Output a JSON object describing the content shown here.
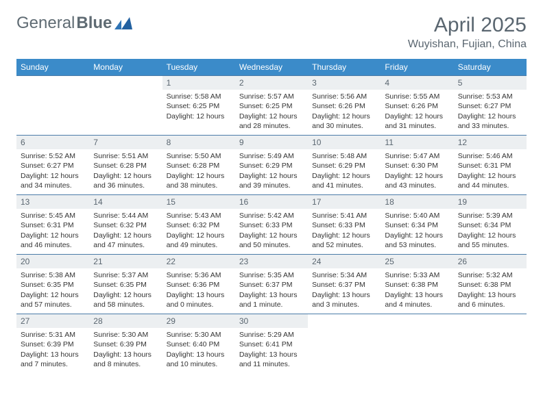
{
  "logo": {
    "text1": "General",
    "text2": "Blue"
  },
  "title": "April 2025",
  "location": "Wuyishan, Fujian, China",
  "colors": {
    "header_bg": "#3b8bc9",
    "header_text": "#ffffff",
    "daynum_bg": "#eceff1",
    "border": "#4a7ba8",
    "title_color": "#5a6670",
    "logo_accent": "#2f74b5"
  },
  "weekdays": [
    "Sunday",
    "Monday",
    "Tuesday",
    "Wednesday",
    "Thursday",
    "Friday",
    "Saturday"
  ],
  "weeks": [
    [
      {
        "day": null
      },
      {
        "day": null
      },
      {
        "day": 1,
        "sunrise": "5:58 AM",
        "sunset": "6:25 PM",
        "daylight": "12 hours"
      },
      {
        "day": 2,
        "sunrise": "5:57 AM",
        "sunset": "6:25 PM",
        "daylight": "12 hours and 28 minutes."
      },
      {
        "day": 3,
        "sunrise": "5:56 AM",
        "sunset": "6:26 PM",
        "daylight": "12 hours and 30 minutes."
      },
      {
        "day": 4,
        "sunrise": "5:55 AM",
        "sunset": "6:26 PM",
        "daylight": "12 hours and 31 minutes."
      },
      {
        "day": 5,
        "sunrise": "5:53 AM",
        "sunset": "6:27 PM",
        "daylight": "12 hours and 33 minutes."
      }
    ],
    [
      {
        "day": 6,
        "sunrise": "5:52 AM",
        "sunset": "6:27 PM",
        "daylight": "12 hours and 34 minutes."
      },
      {
        "day": 7,
        "sunrise": "5:51 AM",
        "sunset": "6:28 PM",
        "daylight": "12 hours and 36 minutes."
      },
      {
        "day": 8,
        "sunrise": "5:50 AM",
        "sunset": "6:28 PM",
        "daylight": "12 hours and 38 minutes."
      },
      {
        "day": 9,
        "sunrise": "5:49 AM",
        "sunset": "6:29 PM",
        "daylight": "12 hours and 39 minutes."
      },
      {
        "day": 10,
        "sunrise": "5:48 AM",
        "sunset": "6:29 PM",
        "daylight": "12 hours and 41 minutes."
      },
      {
        "day": 11,
        "sunrise": "5:47 AM",
        "sunset": "6:30 PM",
        "daylight": "12 hours and 43 minutes."
      },
      {
        "day": 12,
        "sunrise": "5:46 AM",
        "sunset": "6:31 PM",
        "daylight": "12 hours and 44 minutes."
      }
    ],
    [
      {
        "day": 13,
        "sunrise": "5:45 AM",
        "sunset": "6:31 PM",
        "daylight": "12 hours and 46 minutes."
      },
      {
        "day": 14,
        "sunrise": "5:44 AM",
        "sunset": "6:32 PM",
        "daylight": "12 hours and 47 minutes."
      },
      {
        "day": 15,
        "sunrise": "5:43 AM",
        "sunset": "6:32 PM",
        "daylight": "12 hours and 49 minutes."
      },
      {
        "day": 16,
        "sunrise": "5:42 AM",
        "sunset": "6:33 PM",
        "daylight": "12 hours and 50 minutes."
      },
      {
        "day": 17,
        "sunrise": "5:41 AM",
        "sunset": "6:33 PM",
        "daylight": "12 hours and 52 minutes."
      },
      {
        "day": 18,
        "sunrise": "5:40 AM",
        "sunset": "6:34 PM",
        "daylight": "12 hours and 53 minutes."
      },
      {
        "day": 19,
        "sunrise": "5:39 AM",
        "sunset": "6:34 PM",
        "daylight": "12 hours and 55 minutes."
      }
    ],
    [
      {
        "day": 20,
        "sunrise": "5:38 AM",
        "sunset": "6:35 PM",
        "daylight": "12 hours and 57 minutes."
      },
      {
        "day": 21,
        "sunrise": "5:37 AM",
        "sunset": "6:35 PM",
        "daylight": "12 hours and 58 minutes."
      },
      {
        "day": 22,
        "sunrise": "5:36 AM",
        "sunset": "6:36 PM",
        "daylight": "13 hours and 0 minutes."
      },
      {
        "day": 23,
        "sunrise": "5:35 AM",
        "sunset": "6:37 PM",
        "daylight": "13 hours and 1 minute."
      },
      {
        "day": 24,
        "sunrise": "5:34 AM",
        "sunset": "6:37 PM",
        "daylight": "13 hours and 3 minutes."
      },
      {
        "day": 25,
        "sunrise": "5:33 AM",
        "sunset": "6:38 PM",
        "daylight": "13 hours and 4 minutes."
      },
      {
        "day": 26,
        "sunrise": "5:32 AM",
        "sunset": "6:38 PM",
        "daylight": "13 hours and 6 minutes."
      }
    ],
    [
      {
        "day": 27,
        "sunrise": "5:31 AM",
        "sunset": "6:39 PM",
        "daylight": "13 hours and 7 minutes."
      },
      {
        "day": 28,
        "sunrise": "5:30 AM",
        "sunset": "6:39 PM",
        "daylight": "13 hours and 8 minutes."
      },
      {
        "day": 29,
        "sunrise": "5:30 AM",
        "sunset": "6:40 PM",
        "daylight": "13 hours and 10 minutes."
      },
      {
        "day": 30,
        "sunrise": "5:29 AM",
        "sunset": "6:41 PM",
        "daylight": "13 hours and 11 minutes."
      },
      {
        "day": null
      },
      {
        "day": null
      },
      {
        "day": null
      }
    ]
  ]
}
